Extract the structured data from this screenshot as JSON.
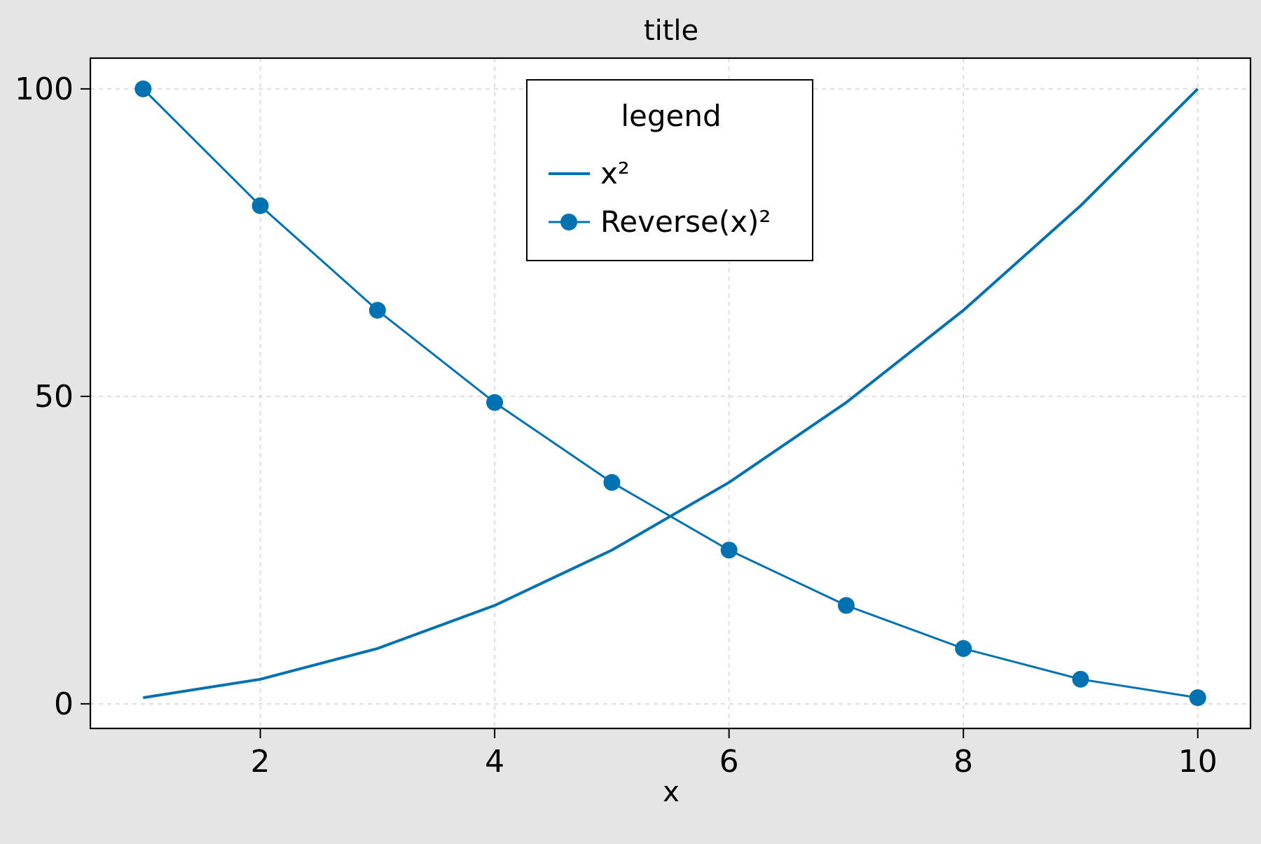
{
  "colors": {
    "figure_background": "#e5e5e5",
    "plot_background": "#ffffff",
    "series": "#0072b2",
    "grid": "#dddddd",
    "axis": "#000000"
  },
  "chart_data": {
    "type": "line",
    "title": "title",
    "xlabel": "x",
    "ylabel": "",
    "xlim": [
      0.55,
      10.45
    ],
    "ylim": [
      -4,
      105
    ],
    "xticks": [
      2,
      4,
      6,
      8,
      10
    ],
    "yticks": [
      0,
      50,
      100
    ],
    "xtick_labels": [
      "2",
      "4",
      "6",
      "8",
      "10"
    ],
    "ytick_labels": [
      "0",
      "50",
      "100"
    ],
    "grid": true,
    "grid_style": "dashed",
    "legend": {
      "title": "legend",
      "position": "top-center"
    },
    "series": [
      {
        "name": "x²",
        "style": "line",
        "x": [
          1,
          2,
          3,
          4,
          5,
          6,
          7,
          8,
          9,
          10
        ],
        "y": [
          1,
          4,
          9,
          16,
          25,
          36,
          49,
          64,
          81,
          100
        ]
      },
      {
        "name": "Reverse(x)²",
        "style": "line-marker",
        "x": [
          1,
          2,
          3,
          4,
          5,
          6,
          7,
          8,
          9,
          10
        ],
        "y": [
          100,
          81,
          64,
          49,
          36,
          25,
          16,
          9,
          4,
          1
        ]
      }
    ]
  }
}
